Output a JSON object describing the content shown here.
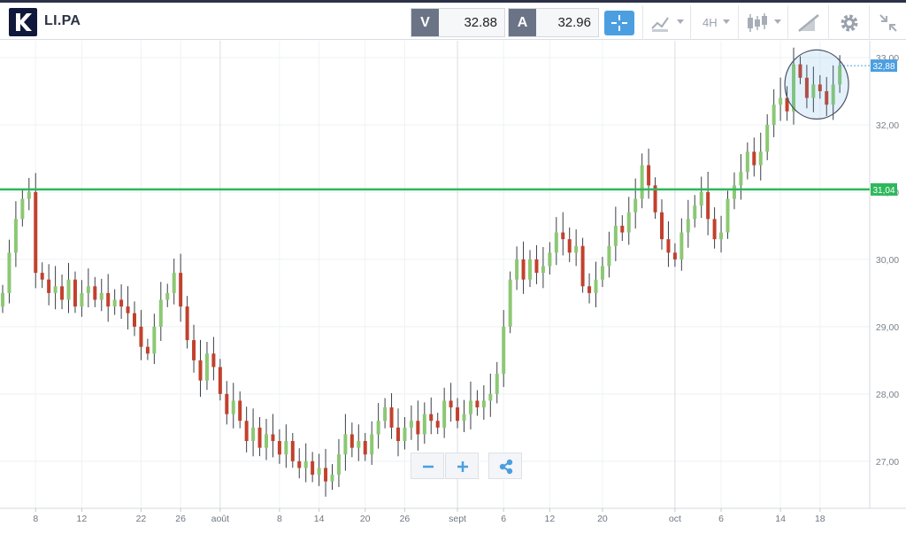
{
  "header": {
    "symbol": "LI.PA",
    "bid_label": "V",
    "bid_value": "32.88",
    "ask_label": "A",
    "ask_value": "32.96",
    "timeframe": "4H",
    "accent_color": "#4b9fe0",
    "icons": [
      "broker-logo-icon",
      "crosshair-icon",
      "indicators-icon",
      "timeframe-dropdown",
      "candle-type-icon",
      "drawing-tools-icon",
      "gear-icon",
      "collapse-icon"
    ]
  },
  "zoom_controls": {
    "icons": [
      "zoom-out-icon",
      "zoom-in-icon",
      "share-icon"
    ]
  },
  "chart_data": {
    "type": "candlestick",
    "y_ticks": [
      "33,00",
      "32,00",
      "31,00",
      "30,00",
      "29,00",
      "28,00",
      "27,00"
    ],
    "x_ticks": [
      "8",
      "12",
      "22",
      "26",
      "août",
      "8",
      "14",
      "20",
      "26",
      "sept",
      "6",
      "12",
      "20",
      "oct",
      "6",
      "14",
      "18"
    ],
    "ylim": [
      26.3,
      33.25
    ],
    "current_price": {
      "label": "32,88",
      "value": 32.88,
      "color": "#4b9fe0"
    },
    "horizontal_line": {
      "label": "31,04",
      "value": 31.04,
      "color": "#2eb85c"
    },
    "highlight_circle": {
      "index_range": [
        120,
        127
      ],
      "note": ""
    },
    "up_color": "#8cc874",
    "down_color": "#c2412d",
    "closes": [
      29.5,
      30.1,
      30.6,
      30.9,
      31.0,
      29.8,
      29.7,
      29.5,
      29.6,
      29.4,
      29.7,
      29.3,
      29.5,
      29.6,
      29.4,
      29.5,
      29.3,
      29.4,
      29.3,
      29.2,
      29.0,
      28.7,
      28.6,
      29.0,
      29.4,
      29.5,
      29.8,
      29.3,
      28.8,
      28.5,
      28.2,
      28.6,
      28.4,
      28.0,
      27.7,
      27.9,
      27.6,
      27.3,
      27.5,
      27.2,
      27.4,
      27.3,
      27.1,
      27.3,
      27.0,
      26.9,
      27.0,
      26.8,
      26.9,
      26.7,
      26.8,
      27.1,
      27.4,
      27.2,
      27.3,
      27.1,
      27.4,
      27.6,
      27.8,
      27.5,
      27.3,
      27.5,
      27.6,
      27.4,
      27.7,
      27.6,
      27.5,
      27.9,
      27.8,
      27.6,
      27.7,
      27.9,
      27.8,
      27.9,
      28.0,
      28.3,
      29.0,
      29.7,
      30.0,
      29.7,
      30.0,
      29.8,
      29.9,
      30.1,
      30.4,
      30.3,
      30.1,
      30.2,
      29.6,
      29.5,
      29.7,
      29.9,
      30.2,
      30.5,
      30.4,
      30.7,
      30.9,
      31.4,
      31.1,
      30.7,
      30.3,
      30.1,
      30.0,
      30.4,
      30.6,
      30.8,
      31.0,
      30.6,
      30.3,
      30.4,
      30.9,
      31.1,
      31.3,
      31.6,
      31.4,
      31.6,
      32.0,
      32.3,
      32.4,
      32.2,
      32.9,
      32.7,
      32.4,
      32.6,
      32.5,
      32.3,
      32.6,
      32.88
    ]
  }
}
